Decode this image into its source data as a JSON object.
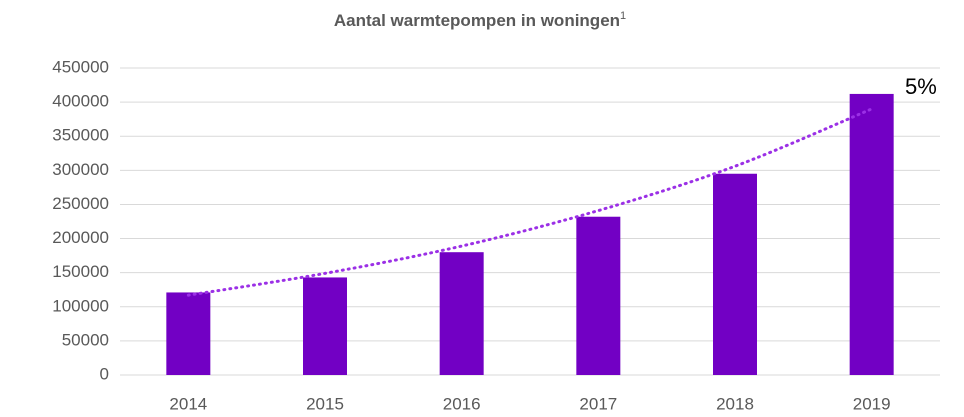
{
  "chart_data": {
    "type": "bar",
    "title": "Aantal warmtepompen in woningen",
    "title_superscript": "1",
    "categories": [
      "2014",
      "2015",
      "2016",
      "2017",
      "2018",
      "2019"
    ],
    "values": [
      121000,
      143000,
      180000,
      232000,
      295000,
      412000
    ],
    "color": "#7200c4",
    "trendline": {
      "values": [
        117000,
        149000,
        189000,
        241000,
        306000,
        390000
      ],
      "color": "#9b30e6"
    },
    "annotation": "5%",
    "ylim": [
      0,
      450000
    ],
    "yticks": [
      0,
      50000,
      100000,
      150000,
      200000,
      250000,
      300000,
      350000,
      400000,
      450000
    ],
    "grid": true
  }
}
